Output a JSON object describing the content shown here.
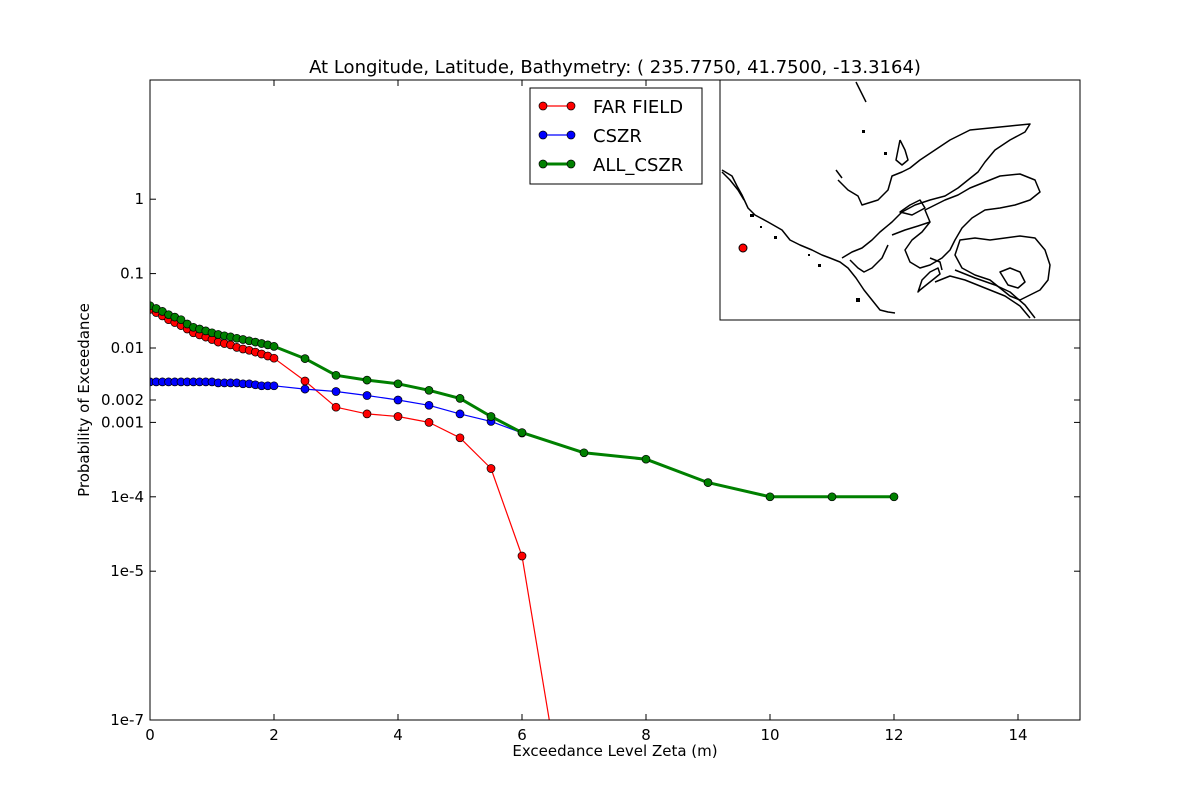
{
  "chart_data": {
    "type": "line",
    "title": "At Longitude, Latitude, Bathymetry:  ( 235.7750,  41.7500, -13.3164)",
    "xlabel": "Exceedance Level Zeta (m)",
    "ylabel": "Probability of Exceedance",
    "xscale": "linear",
    "yscale": "log",
    "xlim": [
      0,
      15
    ],
    "ylim": [
      1e-07,
      40
    ],
    "grid": false,
    "legend_position": "top-center",
    "x_ticks": [
      0,
      2,
      4,
      6,
      8,
      10,
      12,
      14
    ],
    "x_tick_labels": [
      "0",
      "2",
      "4",
      "6",
      "8",
      "10",
      "12",
      "14"
    ],
    "y_ticks": [
      1e-07,
      1e-05,
      0.0001,
      0.001,
      0.002,
      0.01,
      0.1,
      1
    ],
    "y_tick_labels": [
      "1e-7",
      "1e-5",
      "1e-4",
      "0.001",
      "0.002",
      "0.01",
      "0.1",
      "1"
    ],
    "series": [
      {
        "name": "FAR FIELD",
        "color": "#ff0000",
        "line_width": 1.2,
        "x": [
          0,
          0.1,
          0.2,
          0.3,
          0.4,
          0.5,
          0.6,
          0.7,
          0.8,
          0.9,
          1.0,
          1.1,
          1.2,
          1.3,
          1.4,
          1.5,
          1.6,
          1.7,
          1.8,
          1.9,
          2.0,
          2.5,
          3.0,
          3.5,
          4.0,
          4.5,
          5.0,
          5.5,
          6.0,
          6.5
        ],
        "y": [
          0.033,
          0.03,
          0.027,
          0.024,
          0.022,
          0.02,
          0.018,
          0.016,
          0.015,
          0.014,
          0.013,
          0.012,
          0.0115,
          0.011,
          0.0102,
          0.0097,
          0.0093,
          0.0088,
          0.0083,
          0.0078,
          0.0073,
          0.0036,
          0.0016,
          0.0013,
          0.0012,
          0.001,
          0.00062,
          0.00024,
          1.6e-05,
          5e-08
        ]
      },
      {
        "name": "CSZR",
        "color": "#0000ff",
        "line_width": 1.2,
        "x": [
          0,
          0.1,
          0.2,
          0.3,
          0.4,
          0.5,
          0.6,
          0.7,
          0.8,
          0.9,
          1.0,
          1.1,
          1.2,
          1.3,
          1.4,
          1.5,
          1.6,
          1.7,
          1.8,
          1.9,
          2.0,
          2.5,
          3.0,
          3.5,
          4.0,
          4.5,
          5.0,
          5.5,
          6.0
        ],
        "y": [
          0.0035,
          0.0035,
          0.0035,
          0.0035,
          0.0035,
          0.0035,
          0.0035,
          0.0035,
          0.0035,
          0.0035,
          0.0035,
          0.0034,
          0.0034,
          0.0034,
          0.0034,
          0.0033,
          0.0033,
          0.0032,
          0.0031,
          0.0031,
          0.0031,
          0.0028,
          0.0026,
          0.0023,
          0.002,
          0.0017,
          0.0013,
          0.00103,
          0.00072
        ]
      },
      {
        "name": "ALL_CSZR",
        "color": "#008000",
        "line_width": 3,
        "x": [
          0,
          0.1,
          0.2,
          0.3,
          0.4,
          0.5,
          0.6,
          0.7,
          0.8,
          0.9,
          1.0,
          1.1,
          1.2,
          1.3,
          1.4,
          1.5,
          1.6,
          1.7,
          1.8,
          1.9,
          2.0,
          2.5,
          3.0,
          3.5,
          4.0,
          4.5,
          5.0,
          5.5,
          6.0,
          7.0,
          8.0,
          9.0,
          10.0,
          11.0,
          12.0
        ],
        "y": [
          0.037,
          0.034,
          0.031,
          0.028,
          0.026,
          0.024,
          0.021,
          0.019,
          0.018,
          0.017,
          0.016,
          0.0152,
          0.0146,
          0.0141,
          0.0135,
          0.013,
          0.0125,
          0.012,
          0.0115,
          0.011,
          0.0105,
          0.0072,
          0.0043,
          0.0037,
          0.0033,
          0.0027,
          0.0021,
          0.0012,
          0.00073,
          0.00039,
          0.00032,
          0.000155,
          0.0001,
          0.0001,
          0.0001
        ]
      }
    ]
  },
  "inset_map": {
    "marker_color": "#ff0000",
    "coastline_color": "#000000"
  }
}
